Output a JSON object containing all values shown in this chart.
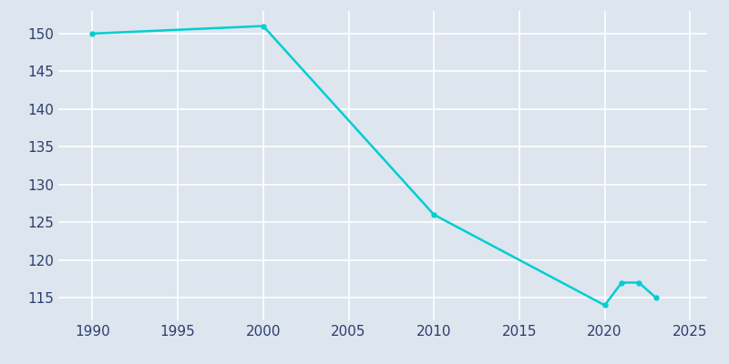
{
  "years": [
    1990,
    2000,
    2010,
    2020,
    2021,
    2022,
    2023
  ],
  "population": [
    150,
    151,
    126,
    114,
    117,
    117,
    115
  ],
  "line_color": "#00CED1",
  "marker_color": "#00CED1",
  "background_color": "#DDE5EF",
  "grid_color": "#C8D4E3",
  "xlabel": "",
  "ylabel": "",
  "xlim": [
    1988,
    2026
  ],
  "ylim": [
    112,
    153
  ],
  "xticks": [
    1990,
    1995,
    2000,
    2005,
    2010,
    2015,
    2020,
    2025
  ],
  "yticks": [
    115,
    120,
    125,
    130,
    135,
    140,
    145,
    150
  ],
  "tick_label_color": "#2F3E6E",
  "line_width": 1.8,
  "marker_size": 3.5
}
